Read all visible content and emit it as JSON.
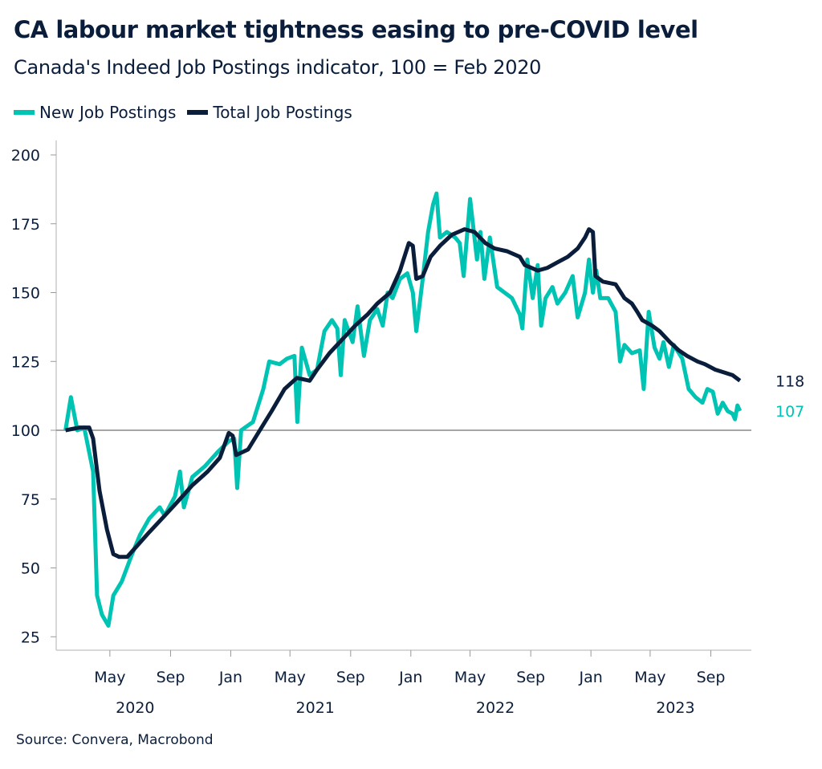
{
  "chart_data": {
    "type": "line",
    "title": "CA labour market tightness easing to pre-COVID level",
    "subtitle": "Canada's Indeed Job Postings indicator, 100 = Feb 2020",
    "source": "Source: Convera, Macrobond",
    "ylim": [
      20,
      205
    ],
    "yticks": [
      25,
      50,
      75,
      100,
      125,
      150,
      175,
      200
    ],
    "reference_line": 100,
    "xticks": [
      {
        "date": "2020-05-01",
        "label": "May"
      },
      {
        "date": "2020-09-01",
        "label": "Sep"
      },
      {
        "date": "2021-01-01",
        "label": "Jan"
      },
      {
        "date": "2021-05-01",
        "label": "May"
      },
      {
        "date": "2021-09-01",
        "label": "Sep"
      },
      {
        "date": "2022-01-01",
        "label": "Jan"
      },
      {
        "date": "2022-05-01",
        "label": "May"
      },
      {
        "date": "2022-09-01",
        "label": "Sep"
      },
      {
        "date": "2023-01-01",
        "label": "Jan"
      },
      {
        "date": "2023-05-01",
        "label": "May"
      },
      {
        "date": "2023-09-01",
        "label": "Sep"
      }
    ],
    "years": [
      {
        "date": "2020-07-01",
        "label": "2020"
      },
      {
        "date": "2021-07-01",
        "label": "2021"
      },
      {
        "date": "2022-07-01",
        "label": "2022"
      },
      {
        "date": "2023-07-01",
        "label": "2023"
      }
    ],
    "legend_placement": "top-left",
    "grid": false,
    "series": [
      {
        "name": "New Job Postings",
        "color": "#00c4b3",
        "end_label": "107",
        "points": [
          [
            "2020-02-01",
            100
          ],
          [
            "2020-02-12",
            112
          ],
          [
            "2020-02-25",
            100
          ],
          [
            "2020-03-10",
            101
          ],
          [
            "2020-03-28",
            85
          ],
          [
            "2020-04-05",
            40
          ],
          [
            "2020-04-15",
            33
          ],
          [
            "2020-04-28",
            29
          ],
          [
            "2020-05-08",
            40
          ],
          [
            "2020-05-25",
            45
          ],
          [
            "2020-06-15",
            55
          ],
          [
            "2020-07-01",
            62
          ],
          [
            "2020-07-20",
            68
          ],
          [
            "2020-08-10",
            72
          ],
          [
            "2020-08-20",
            69
          ],
          [
            "2020-09-10",
            76
          ],
          [
            "2020-09-20",
            85
          ],
          [
            "2020-09-28",
            72
          ],
          [
            "2020-10-15",
            83
          ],
          [
            "2020-11-10",
            87
          ],
          [
            "2020-12-05",
            92
          ],
          [
            "2020-12-28",
            96
          ],
          [
            "2021-01-08",
            97
          ],
          [
            "2021-01-14",
            79
          ],
          [
            "2021-01-22",
            100
          ],
          [
            "2021-02-15",
            103
          ],
          [
            "2021-03-08",
            115
          ],
          [
            "2021-03-20",
            125
          ],
          [
            "2021-04-10",
            124
          ],
          [
            "2021-04-25",
            126
          ],
          [
            "2021-05-10",
            127
          ],
          [
            "2021-05-16",
            103
          ],
          [
            "2021-05-25",
            130
          ],
          [
            "2021-06-10",
            120
          ],
          [
            "2021-06-25",
            122
          ],
          [
            "2021-07-10",
            136
          ],
          [
            "2021-07-25",
            140
          ],
          [
            "2021-08-05",
            137
          ],
          [
            "2021-08-12",
            120
          ],
          [
            "2021-08-20",
            140
          ],
          [
            "2021-09-05",
            132
          ],
          [
            "2021-09-15",
            145
          ],
          [
            "2021-09-28",
            127
          ],
          [
            "2021-10-10",
            140
          ],
          [
            "2021-10-25",
            144
          ],
          [
            "2021-11-05",
            138
          ],
          [
            "2021-11-15",
            150
          ],
          [
            "2021-11-25",
            148
          ],
          [
            "2021-12-10",
            155
          ],
          [
            "2021-12-25",
            157
          ],
          [
            "2022-01-05",
            150
          ],
          [
            "2022-01-12",
            136
          ],
          [
            "2022-01-25",
            155
          ],
          [
            "2022-02-05",
            172
          ],
          [
            "2022-02-15",
            182
          ],
          [
            "2022-02-22",
            186
          ],
          [
            "2022-03-01",
            170
          ],
          [
            "2022-03-15",
            172
          ],
          [
            "2022-04-01",
            170
          ],
          [
            "2022-04-10",
            168
          ],
          [
            "2022-04-18",
            156
          ],
          [
            "2022-05-01",
            184
          ],
          [
            "2022-05-15",
            162
          ],
          [
            "2022-05-22",
            172
          ],
          [
            "2022-05-30",
            155
          ],
          [
            "2022-06-10",
            170
          ],
          [
            "2022-06-25",
            152
          ],
          [
            "2022-07-10",
            150
          ],
          [
            "2022-07-25",
            148
          ],
          [
            "2022-08-10",
            142
          ],
          [
            "2022-08-15",
            137
          ],
          [
            "2022-08-25",
            162
          ],
          [
            "2022-09-05",
            148
          ],
          [
            "2022-09-15",
            160
          ],
          [
            "2022-09-22",
            138
          ],
          [
            "2022-10-01",
            148
          ],
          [
            "2022-10-15",
            152
          ],
          [
            "2022-10-25",
            146
          ],
          [
            "2022-11-10",
            150
          ],
          [
            "2022-11-25",
            156
          ],
          [
            "2022-12-05",
            141
          ],
          [
            "2022-12-20",
            150
          ],
          [
            "2022-12-28",
            162
          ],
          [
            "2023-01-05",
            150
          ],
          [
            "2023-01-12",
            158
          ],
          [
            "2023-01-20",
            148
          ],
          [
            "2023-02-05",
            148
          ],
          [
            "2023-02-20",
            143
          ],
          [
            "2023-03-01",
            125
          ],
          [
            "2023-03-10",
            131
          ],
          [
            "2023-03-25",
            128
          ],
          [
            "2023-04-10",
            129
          ],
          [
            "2023-04-18",
            115
          ],
          [
            "2023-04-28",
            143
          ],
          [
            "2023-05-10",
            130
          ],
          [
            "2023-05-20",
            126
          ],
          [
            "2023-05-28",
            132
          ],
          [
            "2023-06-08",
            123
          ],
          [
            "2023-06-18",
            131
          ],
          [
            "2023-07-05",
            126
          ],
          [
            "2023-07-18",
            115
          ],
          [
            "2023-08-01",
            112
          ],
          [
            "2023-08-15",
            110
          ],
          [
            "2023-08-25",
            115
          ],
          [
            "2023-09-05",
            114
          ],
          [
            "2023-09-15",
            106
          ],
          [
            "2023-09-25",
            110
          ],
          [
            "2023-10-05",
            107
          ],
          [
            "2023-10-15",
            106
          ],
          [
            "2023-10-20",
            104
          ],
          [
            "2023-10-25",
            109
          ],
          [
            "2023-10-30",
            107
          ]
        ]
      },
      {
        "name": "Total Job Postings",
        "color": "#0a1e3c",
        "end_label": "118",
        "points": [
          [
            "2020-02-01",
            100
          ],
          [
            "2020-03-01",
            101
          ],
          [
            "2020-03-20",
            101
          ],
          [
            "2020-03-28",
            97
          ],
          [
            "2020-04-10",
            78
          ],
          [
            "2020-04-25",
            64
          ],
          [
            "2020-05-08",
            55
          ],
          [
            "2020-05-20",
            54
          ],
          [
            "2020-06-05",
            54
          ],
          [
            "2020-06-25",
            58
          ],
          [
            "2020-07-20",
            63
          ],
          [
            "2020-08-15",
            68
          ],
          [
            "2020-09-15",
            74
          ],
          [
            "2020-10-15",
            80
          ],
          [
            "2020-11-15",
            85
          ],
          [
            "2020-12-10",
            90
          ],
          [
            "2020-12-28",
            99
          ],
          [
            "2021-01-05",
            98
          ],
          [
            "2021-01-12",
            91
          ],
          [
            "2021-02-05",
            93
          ],
          [
            "2021-03-01",
            100
          ],
          [
            "2021-03-25",
            107
          ],
          [
            "2021-04-20",
            115
          ],
          [
            "2021-05-15",
            119
          ],
          [
            "2021-06-10",
            118
          ],
          [
            "2021-06-25",
            122
          ],
          [
            "2021-07-20",
            128
          ],
          [
            "2021-08-15",
            133
          ],
          [
            "2021-09-10",
            138
          ],
          [
            "2021-10-05",
            142
          ],
          [
            "2021-10-25",
            146
          ],
          [
            "2021-11-20",
            150
          ],
          [
            "2021-12-10",
            158
          ],
          [
            "2021-12-28",
            168
          ],
          [
            "2022-01-05",
            167
          ],
          [
            "2022-01-12",
            155
          ],
          [
            "2022-01-25",
            156
          ],
          [
            "2022-02-10",
            163
          ],
          [
            "2022-03-01",
            167
          ],
          [
            "2022-03-25",
            171
          ],
          [
            "2022-04-20",
            173
          ],
          [
            "2022-05-10",
            172
          ],
          [
            "2022-06-01",
            168
          ],
          [
            "2022-06-20",
            166
          ],
          [
            "2022-07-15",
            165
          ],
          [
            "2022-08-10",
            163
          ],
          [
            "2022-08-20",
            160
          ],
          [
            "2022-09-15",
            158
          ],
          [
            "2022-10-05",
            159
          ],
          [
            "2022-10-25",
            161
          ],
          [
            "2022-11-15",
            163
          ],
          [
            "2022-12-05",
            166
          ],
          [
            "2022-12-20",
            170
          ],
          [
            "2022-12-28",
            173
          ],
          [
            "2023-01-05",
            172
          ],
          [
            "2023-01-10",
            156
          ],
          [
            "2023-01-25",
            154
          ],
          [
            "2023-02-20",
            153
          ],
          [
            "2023-03-10",
            148
          ],
          [
            "2023-03-25",
            146
          ],
          [
            "2023-04-05",
            143
          ],
          [
            "2023-04-15",
            140
          ],
          [
            "2023-05-05",
            138
          ],
          [
            "2023-05-20",
            136
          ],
          [
            "2023-06-10",
            132
          ],
          [
            "2023-06-28",
            129
          ],
          [
            "2023-07-15",
            127
          ],
          [
            "2023-08-05",
            125
          ],
          [
            "2023-08-20",
            124
          ],
          [
            "2023-09-10",
            122
          ],
          [
            "2023-09-28",
            121
          ],
          [
            "2023-10-15",
            120
          ],
          [
            "2023-10-30",
            118
          ]
        ]
      }
    ]
  }
}
